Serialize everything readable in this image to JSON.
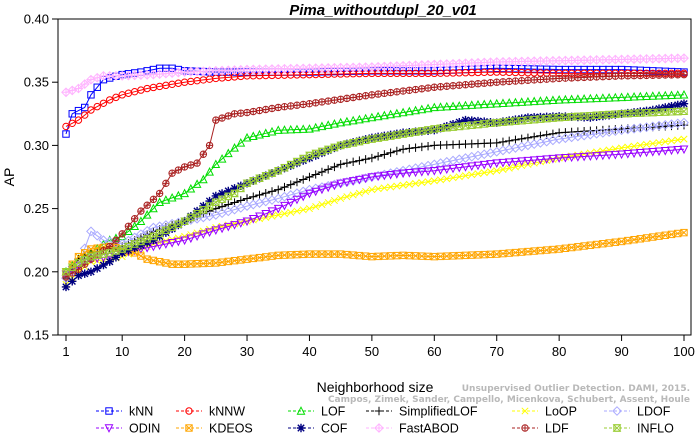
{
  "chart_data": {
    "type": "line",
    "title": "Pima_withoutdupl_20_v01",
    "xlabel": "Neighborhood size",
    "ylabel": "AP",
    "xlim": [
      1,
      100
    ],
    "ylim": [
      0.15,
      0.4
    ],
    "xticks": [
      1,
      10,
      20,
      30,
      40,
      50,
      60,
      70,
      80,
      90,
      100
    ],
    "yticks": [
      0.15,
      0.2,
      0.25,
      0.3,
      0.35,
      0.4
    ],
    "ytick_labels": [
      "0.15",
      "0.20",
      "0.25",
      "0.30",
      "0.35",
      "0.40"
    ],
    "grid": false,
    "legend_position": "bottom",
    "series": [
      {
        "name": "kNN",
        "color": "#0000FF",
        "marker": "square",
        "points": [
          [
            1,
            0.309
          ],
          [
            2,
            0.325
          ],
          [
            4,
            0.33
          ],
          [
            5,
            0.34
          ],
          [
            7,
            0.352
          ],
          [
            10,
            0.356
          ],
          [
            13,
            0.358
          ],
          [
            16,
            0.361
          ],
          [
            18,
            0.361
          ],
          [
            20,
            0.359
          ],
          [
            25,
            0.358
          ],
          [
            30,
            0.358
          ],
          [
            40,
            0.358
          ],
          [
            50,
            0.359
          ],
          [
            60,
            0.359
          ],
          [
            70,
            0.361
          ],
          [
            80,
            0.36
          ],
          [
            90,
            0.36
          ],
          [
            100,
            0.358
          ]
        ]
      },
      {
        "name": "kNNW",
        "color": "#FF0000",
        "marker": "circle",
        "points": [
          [
            1,
            0.315
          ],
          [
            3,
            0.32
          ],
          [
            5,
            0.328
          ],
          [
            8,
            0.336
          ],
          [
            10,
            0.34
          ],
          [
            14,
            0.345
          ],
          [
            20,
            0.35
          ],
          [
            25,
            0.353
          ],
          [
            30,
            0.355
          ],
          [
            40,
            0.356
          ],
          [
            50,
            0.357
          ],
          [
            60,
            0.357
          ],
          [
            70,
            0.358
          ],
          [
            80,
            0.357
          ],
          [
            90,
            0.357
          ],
          [
            100,
            0.357
          ]
        ]
      },
      {
        "name": "LOF",
        "color": "#00DD00",
        "marker": "triangle-up",
        "points": [
          [
            1,
            0.2
          ],
          [
            3,
            0.21
          ],
          [
            5,
            0.215
          ],
          [
            8,
            0.225
          ],
          [
            10,
            0.228
          ],
          [
            13,
            0.24
          ],
          [
            16,
            0.255
          ],
          [
            20,
            0.262
          ],
          [
            23,
            0.273
          ],
          [
            25,
            0.285
          ],
          [
            28,
            0.298
          ],
          [
            30,
            0.306
          ],
          [
            35,
            0.312
          ],
          [
            40,
            0.313
          ],
          [
            45,
            0.318
          ],
          [
            50,
            0.322
          ],
          [
            60,
            0.33
          ],
          [
            70,
            0.333
          ],
          [
            80,
            0.336
          ],
          [
            90,
            0.338
          ],
          [
            100,
            0.34
          ]
        ]
      },
      {
        "name": "SimplifiedLOF",
        "color": "#000000",
        "marker": "plus",
        "points": [
          [
            1,
            0.195
          ],
          [
            3,
            0.21
          ],
          [
            5,
            0.215
          ],
          [
            8,
            0.218
          ],
          [
            10,
            0.22
          ],
          [
            15,
            0.232
          ],
          [
            20,
            0.24
          ],
          [
            25,
            0.25
          ],
          [
            30,
            0.258
          ],
          [
            35,
            0.265
          ],
          [
            40,
            0.275
          ],
          [
            45,
            0.285
          ],
          [
            50,
            0.29
          ],
          [
            55,
            0.297
          ],
          [
            60,
            0.3
          ],
          [
            70,
            0.302
          ],
          [
            80,
            0.31
          ],
          [
            90,
            0.313
          ],
          [
            100,
            0.316
          ]
        ]
      },
      {
        "name": "LoOP",
        "color": "#FFFF00",
        "marker": "cross",
        "points": [
          [
            1,
            0.19
          ],
          [
            3,
            0.2
          ],
          [
            5,
            0.208
          ],
          [
            8,
            0.21
          ],
          [
            10,
            0.212
          ],
          [
            15,
            0.222
          ],
          [
            20,
            0.228
          ],
          [
            25,
            0.235
          ],
          [
            30,
            0.24
          ],
          [
            35,
            0.245
          ],
          [
            40,
            0.25
          ],
          [
            45,
            0.258
          ],
          [
            50,
            0.265
          ],
          [
            60,
            0.272
          ],
          [
            70,
            0.28
          ],
          [
            80,
            0.29
          ],
          [
            90,
            0.298
          ],
          [
            100,
            0.305
          ]
        ]
      },
      {
        "name": "LDOF",
        "color": "#AAAAFF",
        "marker": "diamond",
        "points": [
          [
            1,
            0.195
          ],
          [
            3,
            0.205
          ],
          [
            5,
            0.232
          ],
          [
            7,
            0.225
          ],
          [
            10,
            0.222
          ],
          [
            15,
            0.235
          ],
          [
            20,
            0.24
          ],
          [
            25,
            0.245
          ],
          [
            30,
            0.252
          ],
          [
            35,
            0.258
          ],
          [
            40,
            0.265
          ],
          [
            45,
            0.27
          ],
          [
            50,
            0.275
          ],
          [
            60,
            0.285
          ],
          [
            70,
            0.295
          ],
          [
            80,
            0.305
          ],
          [
            90,
            0.312
          ],
          [
            100,
            0.318
          ]
        ]
      },
      {
        "name": "ODIN",
        "color": "#9900FF",
        "marker": "triangle-down",
        "points": [
          [
            1,
            0.198
          ],
          [
            3,
            0.205
          ],
          [
            5,
            0.21
          ],
          [
            8,
            0.212
          ],
          [
            10,
            0.215
          ],
          [
            15,
            0.22
          ],
          [
            20,
            0.225
          ],
          [
            25,
            0.233
          ],
          [
            30,
            0.24
          ],
          [
            35,
            0.25
          ],
          [
            40,
            0.262
          ],
          [
            45,
            0.27
          ],
          [
            50,
            0.275
          ],
          [
            55,
            0.278
          ],
          [
            60,
            0.28
          ],
          [
            70,
            0.286
          ],
          [
            80,
            0.29
          ],
          [
            90,
            0.293
          ],
          [
            100,
            0.297
          ]
        ]
      },
      {
        "name": "KDEOS",
        "color": "#FFA500",
        "marker": "square-x",
        "points": [
          [
            1,
            0.2
          ],
          [
            3,
            0.212
          ],
          [
            5,
            0.218
          ],
          [
            8,
            0.22
          ],
          [
            10,
            0.218
          ],
          [
            12,
            0.215
          ],
          [
            14,
            0.21
          ],
          [
            16,
            0.208
          ],
          [
            18,
            0.206
          ],
          [
            20,
            0.206
          ],
          [
            25,
            0.207
          ],
          [
            30,
            0.21
          ],
          [
            35,
            0.213
          ],
          [
            40,
            0.214
          ],
          [
            45,
            0.214
          ],
          [
            50,
            0.212
          ],
          [
            55,
            0.213
          ],
          [
            60,
            0.212
          ],
          [
            70,
            0.214
          ],
          [
            80,
            0.218
          ],
          [
            90,
            0.224
          ],
          [
            100,
            0.231
          ]
        ]
      },
      {
        "name": "COF",
        "color": "#000080",
        "marker": "asterisk",
        "points": [
          [
            1,
            0.188
          ],
          [
            3,
            0.197
          ],
          [
            5,
            0.2
          ],
          [
            8,
            0.208
          ],
          [
            10,
            0.215
          ],
          [
            15,
            0.225
          ],
          [
            20,
            0.24
          ],
          [
            25,
            0.26
          ],
          [
            30,
            0.27
          ],
          [
            35,
            0.28
          ],
          [
            40,
            0.29
          ],
          [
            45,
            0.3
          ],
          [
            50,
            0.306
          ],
          [
            55,
            0.31
          ],
          [
            60,
            0.312
          ],
          [
            65,
            0.32
          ],
          [
            70,
            0.318
          ],
          [
            75,
            0.322
          ],
          [
            80,
            0.323
          ],
          [
            85,
            0.322
          ],
          [
            90,
            0.325
          ],
          [
            95,
            0.328
          ],
          [
            100,
            0.333
          ]
        ]
      },
      {
        "name": "FastABOD",
        "color": "#FFB3FF",
        "marker": "diamond-plus",
        "points": [
          [
            1,
            0.342
          ],
          [
            3,
            0.345
          ],
          [
            5,
            0.352
          ],
          [
            7,
            0.355
          ],
          [
            10,
            0.355
          ],
          [
            15,
            0.356
          ],
          [
            20,
            0.358
          ],
          [
            30,
            0.36
          ],
          [
            40,
            0.361
          ],
          [
            50,
            0.362
          ],
          [
            60,
            0.364
          ],
          [
            70,
            0.366
          ],
          [
            80,
            0.367
          ],
          [
            90,
            0.368
          ],
          [
            100,
            0.369
          ]
        ]
      },
      {
        "name": "LDF",
        "color": "#AA2222",
        "marker": "circle-plus",
        "points": [
          [
            1,
            0.196
          ],
          [
            3,
            0.202
          ],
          [
            5,
            0.21
          ],
          [
            8,
            0.22
          ],
          [
            10,
            0.23
          ],
          [
            13,
            0.248
          ],
          [
            16,
            0.262
          ],
          [
            18,
            0.278
          ],
          [
            20,
            0.283
          ],
          [
            22,
            0.286
          ],
          [
            24,
            0.3
          ],
          [
            25,
            0.32
          ],
          [
            28,
            0.325
          ],
          [
            30,
            0.326
          ],
          [
            35,
            0.33
          ],
          [
            40,
            0.333
          ],
          [
            50,
            0.34
          ],
          [
            60,
            0.346
          ],
          [
            70,
            0.35
          ],
          [
            80,
            0.353
          ],
          [
            90,
            0.355
          ],
          [
            100,
            0.356
          ]
        ]
      },
      {
        "name": "INFLO",
        "color": "#99CC33",
        "marker": "hourglass",
        "points": [
          [
            1,
            0.2
          ],
          [
            3,
            0.207
          ],
          [
            5,
            0.212
          ],
          [
            8,
            0.215
          ],
          [
            10,
            0.218
          ],
          [
            15,
            0.228
          ],
          [
            20,
            0.24
          ],
          [
            25,
            0.255
          ],
          [
            28,
            0.262
          ],
          [
            30,
            0.27
          ],
          [
            35,
            0.28
          ],
          [
            40,
            0.292
          ],
          [
            45,
            0.3
          ],
          [
            50,
            0.305
          ],
          [
            55,
            0.309
          ],
          [
            60,
            0.313
          ],
          [
            70,
            0.318
          ],
          [
            80,
            0.322
          ],
          [
            90,
            0.325
          ],
          [
            100,
            0.327
          ]
        ]
      }
    ]
  },
  "watermark": {
    "line1": "Unsupervised Outlier Detection. DAMI, 2015.",
    "line2": "Campos, Zimek, Sander, Campello, Micenkova, Schubert, Assent, Houle"
  }
}
